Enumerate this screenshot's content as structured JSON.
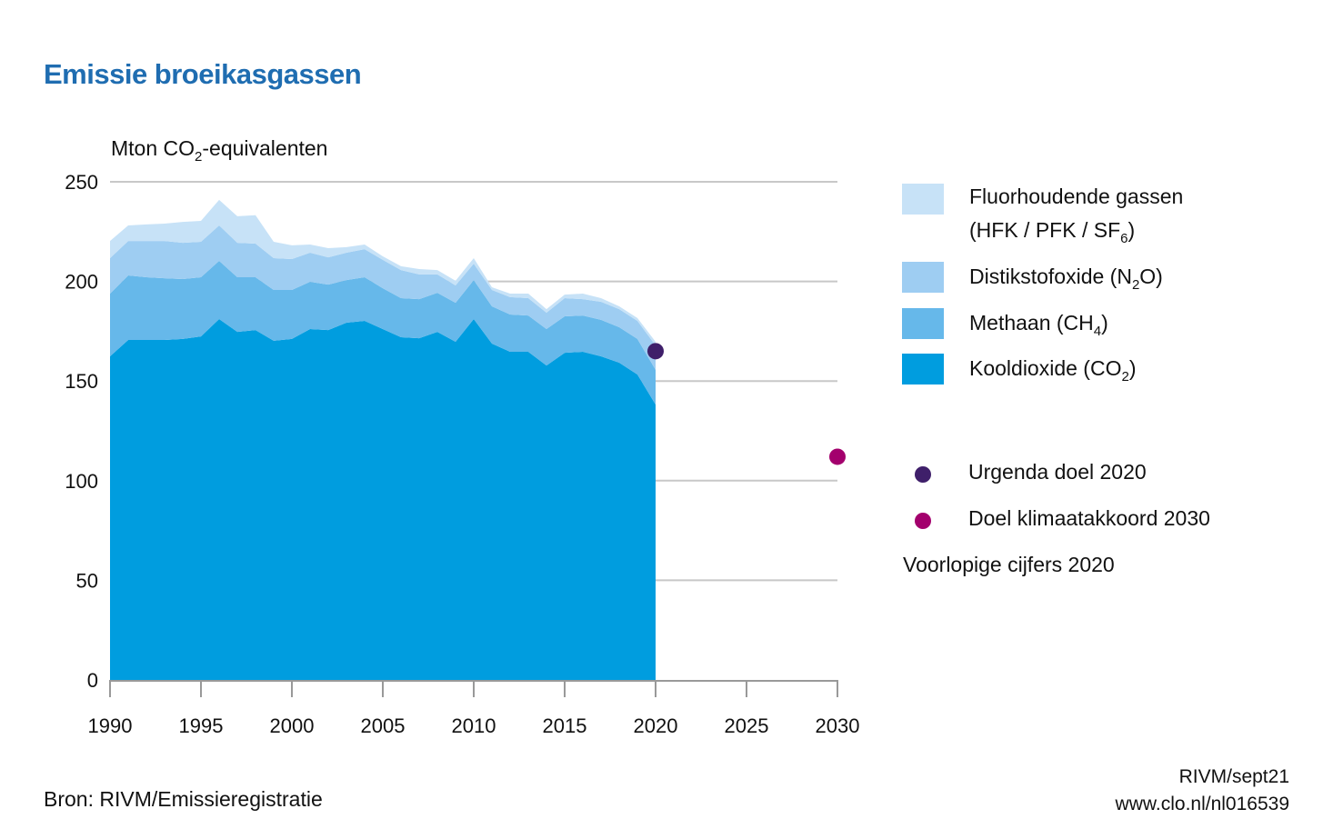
{
  "title": "Emissie broeikasgassen",
  "unit_label": {
    "pre": "Mton CO",
    "sub": "2",
    "post": "-equivalenten"
  },
  "chart_data": {
    "type": "area",
    "stacked": true,
    "title": "Emissie broeikasgassen",
    "ylabel": "Mton CO2-equivalenten",
    "xlabel": "",
    "xlim": [
      1990,
      2030
    ],
    "ylim": [
      0,
      250
    ],
    "yticks": [
      0,
      50,
      100,
      150,
      200,
      250
    ],
    "xticks": [
      1990,
      1995,
      2000,
      2005,
      2010,
      2015,
      2020,
      2025,
      2030
    ],
    "grid": "horizontal",
    "legend_position": "right",
    "x": [
      1990,
      1991,
      1992,
      1993,
      1994,
      1995,
      1996,
      1997,
      1998,
      1999,
      2000,
      2001,
      2002,
      2003,
      2004,
      2005,
      2006,
      2007,
      2008,
      2009,
      2010,
      2011,
      2012,
      2013,
      2014,
      2015,
      2016,
      2017,
      2018,
      2019,
      2020
    ],
    "series": [
      {
        "name": "Kooldioxide (CO2)",
        "key": "co2",
        "color": "#009ddf",
        "values": [
          162.4,
          170.6,
          170.6,
          170.6,
          171.1,
          172.4,
          181.1,
          174.7,
          175.6,
          170.2,
          171.1,
          176.1,
          175.6,
          179.3,
          180.2,
          176.1,
          172.0,
          171.5,
          174.7,
          169.7,
          181.1,
          168.8,
          164.7,
          164.7,
          157.8,
          164.2,
          164.7,
          162.4,
          159.2,
          153.3,
          138.2
        ]
      },
      {
        "name": "Methaan (CH4)",
        "key": "ch4",
        "color": "#66b8ea",
        "values": [
          31.5,
          32.4,
          31.5,
          31.0,
          30.1,
          29.7,
          29.2,
          27.4,
          26.5,
          25.5,
          24.6,
          23.7,
          22.8,
          21.4,
          21.9,
          20.5,
          19.6,
          19.6,
          19.6,
          19.6,
          19.6,
          18.7,
          18.7,
          18.2,
          18.3,
          18.3,
          18.2,
          18.3,
          17.8,
          17.8,
          17.4
        ]
      },
      {
        "name": "Distikstofoxide (N2O)",
        "key": "n2o",
        "color": "#9ecdf2",
        "values": [
          17.8,
          17.3,
          18.2,
          18.7,
          18.2,
          17.8,
          17.8,
          17.3,
          16.9,
          16.0,
          15.5,
          14.6,
          13.7,
          13.7,
          14.1,
          14.2,
          14.1,
          12.4,
          9.2,
          8.7,
          8.2,
          8.2,
          8.7,
          8.7,
          8.2,
          9.1,
          8.2,
          9.1,
          9.1,
          9.1,
          12.3
        ]
      },
      {
        "name": "Fluorhoudende gassen (HFK / PFK / SF6)",
        "key": "f",
        "color": "#c7e2f7",
        "values": [
          8.6,
          7.8,
          8.3,
          8.7,
          10.5,
          10.5,
          12.8,
          13.3,
          14.2,
          8.2,
          6.9,
          4.1,
          4.6,
          2.8,
          2.3,
          1.8,
          1.9,
          2.7,
          2.2,
          2.3,
          2.8,
          1.4,
          1.8,
          2.3,
          1.8,
          1.8,
          2.8,
          1.8,
          1.4,
          1.4,
          1.8
        ]
      }
    ],
    "targets": [
      {
        "name": "Urgenda doel 2020",
        "x": 2020,
        "y": 165,
        "color": "#3f1f6a"
      },
      {
        "name": "Doel klimaatakkoord 2030",
        "x": 2030,
        "y": 112,
        "color": "#a3006d"
      }
    ],
    "annotations": [
      "Voorlopige cijfers 2020"
    ]
  },
  "legend": {
    "items": [
      {
        "line1": "Fluorhoudende gassen",
        "line2_pre": "(HFK / PFK / SF",
        "line2_sub": "6",
        "line2_post": ")",
        "color": "#c7e2f7"
      },
      {
        "pre": "Distikstofoxide (N",
        "sub": "2",
        "post": "O)",
        "color": "#9ecdf2"
      },
      {
        "pre": "Methaan (CH",
        "sub": "4",
        "post": ")",
        "color": "#66b8ea"
      },
      {
        "pre": "Kooldioxide (CO",
        "sub": "2",
        "post": ")",
        "color": "#009ddf"
      }
    ],
    "targets": [
      {
        "label": "Urgenda doel 2020",
        "color": "#3f1f6a"
      },
      {
        "label": "Doel klimaatakkoord 2030",
        "color": "#a3006d"
      }
    ],
    "note": "Voorlopige cijfers 2020"
  },
  "source": "Bron: RIVM/Emissieregistratie",
  "credit": {
    "line1": "RIVM/sept21",
    "line2": "www.clo.nl/nl016539"
  }
}
